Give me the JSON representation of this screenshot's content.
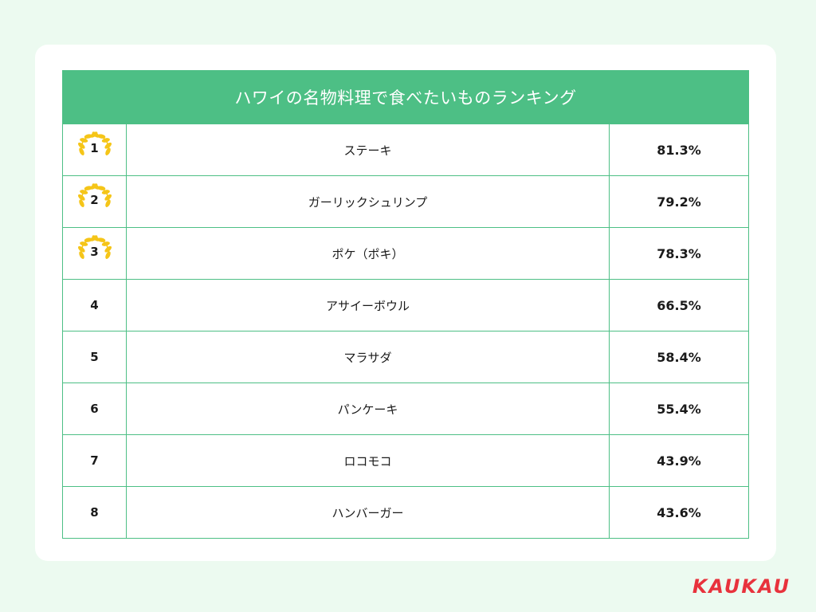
{
  "table": {
    "title": "ハワイの名物料理で食べたいものランキング",
    "rows": [
      {
        "rank": "1",
        "name": "ステーキ",
        "percent": "81.3%"
      },
      {
        "rank": "2",
        "name": "ガーリックシュリンプ",
        "percent": "79.2%"
      },
      {
        "rank": "3",
        "name": "ポケ（ポキ）",
        "percent": "78.3%"
      },
      {
        "rank": "4",
        "name": "アサイーボウル",
        "percent": "66.5%"
      },
      {
        "rank": "5",
        "name": "マラサダ",
        "percent": "58.4%"
      },
      {
        "rank": "6",
        "name": "パンケーキ",
        "percent": "55.4%"
      },
      {
        "rank": "7",
        "name": "ロコモコ",
        "percent": "43.9%"
      },
      {
        "rank": "8",
        "name": "ハンバーガー",
        "percent": "43.6%"
      }
    ]
  },
  "brand": {
    "logo_text": "KAUKAU",
    "color": "#e8323c"
  },
  "colors": {
    "background": "#ecfaf0",
    "header": "#4dbf85",
    "laurel": "#f5c518"
  },
  "icons": {
    "top_three_badge": "laurel-wreath-icon"
  }
}
